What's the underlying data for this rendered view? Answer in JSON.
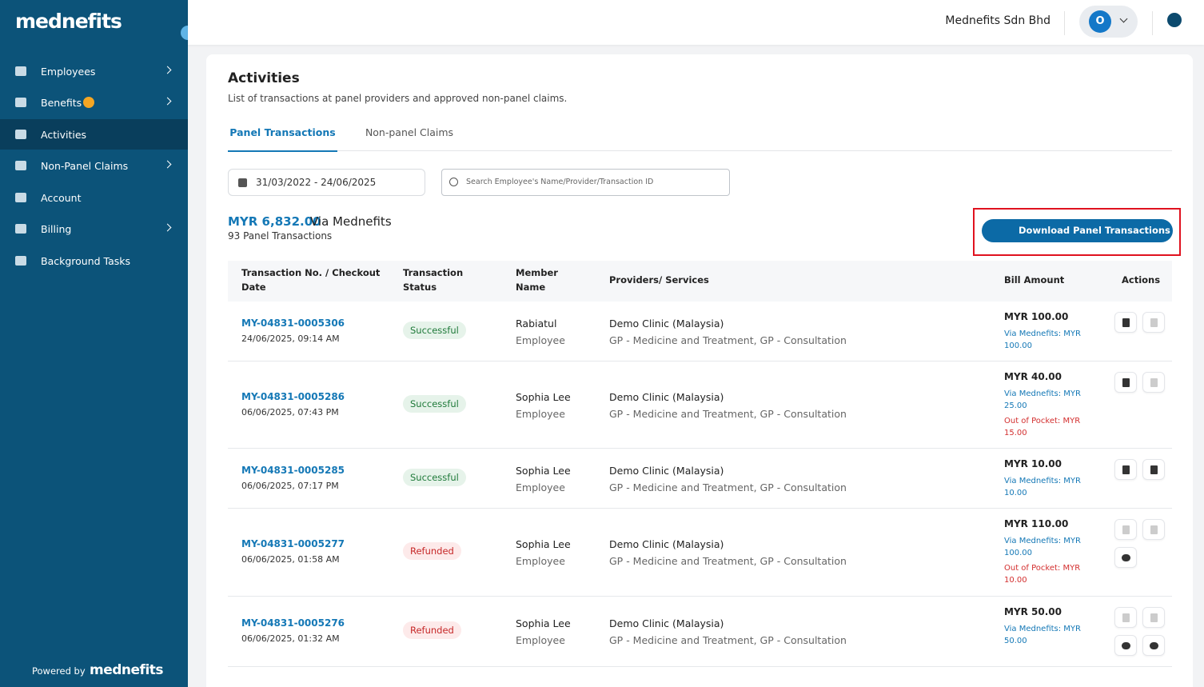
{
  "sidebar": {
    "logo": "mednefits",
    "nav": [
      "Employees",
      "Benefits",
      "Activities",
      "Non-Panel Claims",
      "Account",
      "Billing",
      "Background Tasks"
    ],
    "footer_label": "Powered by",
    "footer_logo": "mednefits"
  },
  "header": {
    "company": "Mednefits Sdn Bhd",
    "avatar": "O"
  },
  "page": {
    "title": "Activities",
    "subtitle": "List of transactions at panel providers and approved non-panel claims.",
    "tabs": [
      "Panel Transactions",
      "Non-panel Claims"
    ],
    "date_range": "31/03/2022 - 24/06/2025",
    "search_placeholder": "Search Employee's Name/Provider/Transaction ID",
    "total_amount": "MYR 6,832.00",
    "total_suffix": "Via Mednefits",
    "count": "93 Panel Transactions",
    "download_button": "Download Panel Transactions"
  },
  "table": {
    "headers": [
      "Transaction No. / Checkout Date",
      "Transaction Status",
      "Member Name",
      "Providers/ Services",
      "Bill Amount",
      "Actions"
    ],
    "rows": [
      {
        "id": "MY-04831-0005306",
        "date": "24/06/2025, 09:14 AM",
        "status": "Successful",
        "member": "Rabiatul",
        "role": "Employee",
        "provider": "Demo Clinic (Malaysia)",
        "services": "GP - Medicine and Treatment, GP - Consultation",
        "amount": "MYR 100.00",
        "via": "Via Mednefits: MYR 100.00"
      },
      {
        "id": "MY-04831-0005286",
        "date": "06/06/2025, 07:43 PM",
        "status": "Successful",
        "member": "Sophia Lee",
        "role": "Employee",
        "provider": "Demo Clinic (Malaysia)",
        "services": "GP - Medicine and Treatment, GP - Consultation",
        "amount": "MYR 40.00",
        "via": "Via Mednefits: MYR 25.00",
        "oop": "Out of Pocket: MYR 15.00"
      },
      {
        "id": "MY-04831-0005285",
        "date": "06/06/2025, 07:17 PM",
        "status": "Successful",
        "member": "Sophia Lee",
        "role": "Employee",
        "provider": "Demo Clinic (Malaysia)",
        "services": "GP - Medicine and Treatment, GP - Consultation",
        "amount": "MYR 10.00",
        "via": "Via Mednefits: MYR 10.00"
      },
      {
        "id": "MY-04831-0005277",
        "date": "06/06/2025, 01:58 AM",
        "status": "Refunded",
        "member": "Sophia Lee",
        "role": "Employee",
        "provider": "Demo Clinic (Malaysia)",
        "services": "GP - Medicine and Treatment, GP - Consultation",
        "amount": "MYR 110.00",
        "via": "Via Mednefits: MYR 100.00",
        "oop": "Out of Pocket: MYR 10.00"
      },
      {
        "id": "MY-04831-0005276",
        "date": "06/06/2025, 01:32 AM",
        "status": "Refunded",
        "member": "Sophia Lee",
        "role": "Employee",
        "provider": "Demo Clinic (Malaysia)",
        "services": "GP - Medicine and Treatment, GP - Consultation",
        "amount": "MYR 50.00",
        "via": "Via Mednefits: MYR 50.00"
      }
    ]
  }
}
